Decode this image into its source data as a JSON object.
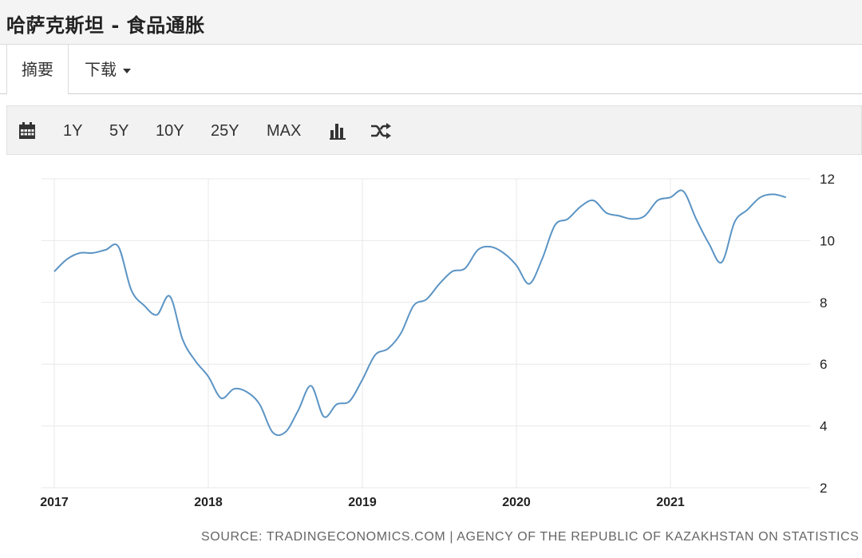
{
  "page": {
    "title": "哈萨克斯坦 - 食品通胀"
  },
  "tabs": [
    {
      "label": "摘要"
    },
    {
      "label": "下载"
    }
  ],
  "toolbar": {
    "calendar_icon": "calendar-icon",
    "ranges": [
      "1Y",
      "5Y",
      "10Y",
      "25Y",
      "MAX"
    ],
    "bar_chart_icon": "bar-chart-icon",
    "shuffle_icon": "shuffle-icon"
  },
  "source": "SOURCE: TRADINGECONOMICS.COM | AGENCY OF THE REPUBLIC OF KAZAKHSTAN ON STATISTICS",
  "chart_data": {
    "type": "line",
    "title": "",
    "xlabel": "",
    "ylabel": "",
    "line_color": "#5b94c4",
    "grid": true,
    "y_axis_position": "right",
    "ylim": [
      2,
      12
    ],
    "yticks": [
      2,
      4,
      6,
      8,
      10,
      12
    ],
    "xticks": [
      "2017",
      "2018",
      "2019",
      "2020",
      "2021"
    ],
    "x_range": [
      "2017-01",
      "2021-10"
    ],
    "series": [
      {
        "x": [
          "2017-01",
          "2017-02",
          "2017-03",
          "2017-04",
          "2017-05",
          "2017-06",
          "2017-07",
          "2017-08",
          "2017-09",
          "2017-10",
          "2017-11",
          "2017-12",
          "2018-01",
          "2018-02",
          "2018-03",
          "2018-04",
          "2018-05",
          "2018-06",
          "2018-07",
          "2018-08",
          "2018-09",
          "2018-10",
          "2018-11",
          "2018-12",
          "2019-01",
          "2019-02",
          "2019-03",
          "2019-04",
          "2019-05",
          "2019-06",
          "2019-07",
          "2019-08",
          "2019-09",
          "2019-10",
          "2019-11",
          "2019-12",
          "2020-01",
          "2020-02",
          "2020-03",
          "2020-04",
          "2020-05",
          "2020-06",
          "2020-07",
          "2020-08",
          "2020-09",
          "2020-10",
          "2020-11",
          "2020-12",
          "2021-01",
          "2021-02",
          "2021-03",
          "2021-04",
          "2021-05",
          "2021-06",
          "2021-07",
          "2021-08",
          "2021-09",
          "2021-10"
        ],
        "values": [
          9.0,
          9.4,
          9.6,
          9.6,
          9.7,
          9.8,
          8.4,
          7.9,
          7.6,
          8.2,
          6.8,
          6.1,
          5.6,
          4.9,
          5.2,
          5.1,
          4.7,
          3.8,
          3.8,
          4.5,
          5.3,
          4.3,
          4.7,
          4.8,
          5.5,
          6.3,
          6.5,
          7.0,
          7.9,
          8.1,
          8.6,
          9.0,
          9.1,
          9.7,
          9.8,
          9.6,
          9.2,
          8.6,
          9.4,
          10.5,
          10.7,
          11.1,
          11.3,
          10.9,
          10.8,
          10.7,
          10.8,
          11.3,
          11.4,
          11.6,
          10.7,
          9.9,
          9.3,
          10.6,
          11.0,
          11.4,
          11.5,
          11.4
        ]
      }
    ]
  }
}
